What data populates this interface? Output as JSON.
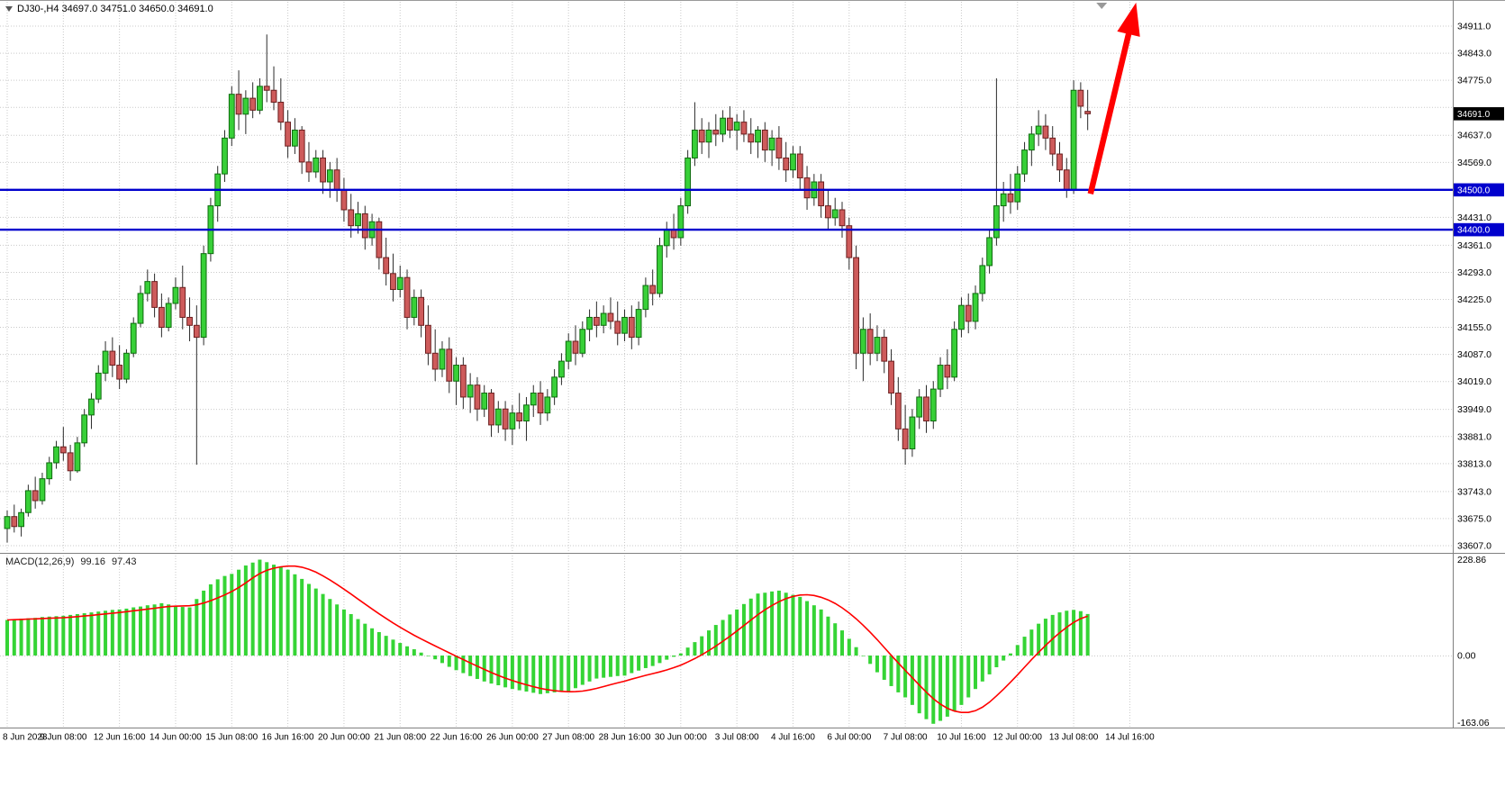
{
  "header": {
    "symbol_info": "DJ30-,H4 34697.0 34751.0 34650.0 34691.0"
  },
  "colors": {
    "background": "#FFFFFF",
    "grid": "#C9C9C9",
    "bull_candle": "#38D038",
    "bull_border": "#0E6B0E",
    "bear_candle": "#CE5B5B",
    "bear_border": "#6B1F1F",
    "wick": "#2B2B2B",
    "level_line": "#0000CD",
    "price_tag_bg": "#000000",
    "macd_histogram": "#35D435",
    "macd_signal": "#FF0000",
    "arrow": "#FF0000",
    "axis_text": "#000000",
    "separator": "#808080"
  },
  "chart_data": {
    "type": "candlestick",
    "symbol": "DJ30-",
    "timeframe": "H4",
    "ohlc_current": {
      "open": 34697.0,
      "high": 34751.0,
      "low": 34650.0,
      "close": 34691.0
    },
    "y_axis": {
      "min": 33607.0,
      "max": 34911.0,
      "labels": [
        "34911.0",
        "34843.0",
        "34775.0",
        "34637.0",
        "34569.0",
        "34431.0",
        "34361.0",
        "34293.0",
        "34225.0",
        "34155.0",
        "34087.0",
        "34019.0",
        "33949.0",
        "33881.0",
        "33813.0",
        "33743.0",
        "33675.0",
        "33607.0"
      ],
      "grid_values": [
        34911,
        34843,
        34775,
        34707,
        34637,
        34569,
        34501,
        34431,
        34361,
        34293,
        34225,
        34155,
        34087,
        34019,
        33949,
        33881,
        33813,
        33743,
        33675,
        33607
      ]
    },
    "x_axis": {
      "bars_per_label": 8,
      "labels": [
        "8 Jun 2023",
        "9 Jun 08:00",
        "12 Jun 16:00",
        "14 Jun 00:00",
        "15 Jun 08:00",
        "16 Jun 16:00",
        "20 Jun 00:00",
        "21 Jun 08:00",
        "22 Jun 16:00",
        "26 Jun 00:00",
        "27 Jun 08:00",
        "28 Jun 16:00",
        "30 Jun 00:00",
        "3 Jul 08:00",
        "4 Jul 16:00",
        "6 Jul 00:00",
        "7 Jul 08:00",
        "10 Jul 16:00",
        "12 Jul 00:00",
        "13 Jul 08:00",
        "14 Jul 16:00"
      ]
    },
    "hlines": [
      {
        "price": 34500.0,
        "label": "34500.0"
      },
      {
        "price": 34400.0,
        "label": "34400.0"
      }
    ],
    "price_tag": {
      "price": 34691.0,
      "label": "34691.0"
    },
    "annotations": {
      "arrow": {
        "from_bar": 154.4,
        "from_price": 34490,
        "to_bar": 160.9,
        "to_price": 34970
      },
      "shift_marker_bar": 156
    },
    "candles": [
      [
        33650,
        33695,
        33615,
        33680
      ],
      [
        33680,
        33710,
        33640,
        33655
      ],
      [
        33655,
        33700,
        33630,
        33690
      ],
      [
        33690,
        33760,
        33680,
        33745
      ],
      [
        33745,
        33780,
        33700,
        33720
      ],
      [
        33720,
        33790,
        33710,
        33775
      ],
      [
        33775,
        33830,
        33760,
        33815
      ],
      [
        33815,
        33870,
        33800,
        33855
      ],
      [
        33855,
        33905,
        33820,
        33840
      ],
      [
        33840,
        33860,
        33770,
        33795
      ],
      [
        33795,
        33880,
        33790,
        33865
      ],
      [
        33865,
        33950,
        33855,
        33935
      ],
      [
        33935,
        33990,
        33900,
        33975
      ],
      [
        33975,
        34060,
        33965,
        34040
      ],
      [
        34040,
        34120,
        34020,
        34095
      ],
      [
        34095,
        34130,
        34030,
        34060
      ],
      [
        34060,
        34110,
        34000,
        34025
      ],
      [
        34025,
        34100,
        34015,
        34090
      ],
      [
        34090,
        34180,
        34080,
        34165
      ],
      [
        34165,
        34260,
        34155,
        34240
      ],
      [
        34240,
        34300,
        34220,
        34270
      ],
      [
        34270,
        34290,
        34180,
        34205
      ],
      [
        34205,
        34240,
        34130,
        34155
      ],
      [
        34155,
        34230,
        34145,
        34215
      ],
      [
        34215,
        34280,
        34200,
        34255
      ],
      [
        34255,
        34310,
        34150,
        34180
      ],
      [
        34180,
        34230,
        34120,
        34160
      ],
      [
        34160,
        34210,
        33810,
        34130
      ],
      [
        34130,
        34360,
        34110,
        34340
      ],
      [
        34340,
        34480,
        34320,
        34460
      ],
      [
        34460,
        34560,
        34420,
        34540
      ],
      [
        34540,
        34650,
        34520,
        34630
      ],
      [
        34630,
        34760,
        34610,
        34740
      ],
      [
        34740,
        34800,
        34650,
        34690
      ],
      [
        34690,
        34750,
        34640,
        34730
      ],
      [
        34730,
        34770,
        34680,
        34700
      ],
      [
        34700,
        34780,
        34690,
        34760
      ],
      [
        34760,
        34890,
        34720,
        34750
      ],
      [
        34750,
        34810,
        34700,
        34720
      ],
      [
        34720,
        34780,
        34650,
        34670
      ],
      [
        34670,
        34700,
        34580,
        34610
      ],
      [
        34610,
        34680,
        34590,
        34650
      ],
      [
        34650,
        34660,
        34540,
        34570
      ],
      [
        34570,
        34620,
        34520,
        34545
      ],
      [
        34545,
        34600,
        34530,
        34580
      ],
      [
        34580,
        34600,
        34490,
        34520
      ],
      [
        34520,
        34570,
        34480,
        34550
      ],
      [
        34550,
        34580,
        34470,
        34500
      ],
      [
        34500,
        34530,
        34420,
        34450
      ],
      [
        34450,
        34490,
        34380,
        34410
      ],
      [
        34410,
        34470,
        34390,
        34440
      ],
      [
        34440,
        34460,
        34350,
        34380
      ],
      [
        34380,
        34440,
        34360,
        34420
      ],
      [
        34420,
        34430,
        34300,
        34330
      ],
      [
        34330,
        34380,
        34260,
        34290
      ],
      [
        34290,
        34340,
        34220,
        34250
      ],
      [
        34250,
        34310,
        34230,
        34280
      ],
      [
        34280,
        34300,
        34150,
        34180
      ],
      [
        34180,
        34250,
        34160,
        34230
      ],
      [
        34230,
        34250,
        34130,
        34160
      ],
      [
        34160,
        34210,
        34060,
        34090
      ],
      [
        34090,
        34150,
        34020,
        34050
      ],
      [
        34050,
        34120,
        34030,
        34100
      ],
      [
        34100,
        34130,
        33990,
        34020
      ],
      [
        34020,
        34080,
        33960,
        34060
      ],
      [
        34060,
        34080,
        33950,
        33980
      ],
      [
        33980,
        34040,
        33940,
        34010
      ],
      [
        34010,
        34030,
        33920,
        33950
      ],
      [
        33950,
        34010,
        33930,
        33990
      ],
      [
        33990,
        34000,
        33880,
        33910
      ],
      [
        33910,
        33970,
        33890,
        33950
      ],
      [
        33950,
        33970,
        33870,
        33900
      ],
      [
        33900,
        33960,
        33860,
        33940
      ],
      [
        33940,
        33990,
        33900,
        33920
      ],
      [
        33920,
        33980,
        33870,
        33960
      ],
      [
        33960,
        34010,
        33930,
        33990
      ],
      [
        33990,
        34020,
        33910,
        33940
      ],
      [
        33940,
        34000,
        33920,
        33980
      ],
      [
        33980,
        34050,
        33960,
        34030
      ],
      [
        34030,
        34090,
        34010,
        34070
      ],
      [
        34070,
        34140,
        34050,
        34120
      ],
      [
        34120,
        34160,
        34060,
        34090
      ],
      [
        34090,
        34170,
        34080,
        34150
      ],
      [
        34150,
        34200,
        34120,
        34180
      ],
      [
        34180,
        34220,
        34130,
        34160
      ],
      [
        34160,
        34210,
        34140,
        34190
      ],
      [
        34190,
        34230,
        34150,
        34170
      ],
      [
        34170,
        34220,
        34110,
        34140
      ],
      [
        34140,
        34200,
        34120,
        34180
      ],
      [
        34180,
        34210,
        34100,
        34130
      ],
      [
        34130,
        34220,
        34110,
        34200
      ],
      [
        34200,
        34280,
        34180,
        34260
      ],
      [
        34260,
        34300,
        34210,
        34240
      ],
      [
        34240,
        34380,
        34230,
        34360
      ],
      [
        34360,
        34420,
        34330,
        34400
      ],
      [
        34400,
        34440,
        34350,
        34380
      ],
      [
        34380,
        34480,
        34360,
        34460
      ],
      [
        34460,
        34600,
        34440,
        34580
      ],
      [
        34580,
        34720,
        34560,
        34650
      ],
      [
        34650,
        34680,
        34590,
        34620
      ],
      [
        34620,
        34670,
        34580,
        34650
      ],
      [
        34650,
        34690,
        34610,
        34640
      ],
      [
        34640,
        34700,
        34620,
        34680
      ],
      [
        34680,
        34710,
        34630,
        34650
      ],
      [
        34650,
        34690,
        34600,
        34670
      ],
      [
        34670,
        34700,
        34620,
        34640
      ],
      [
        34640,
        34680,
        34590,
        34620
      ],
      [
        34620,
        34660,
        34580,
        34650
      ],
      [
        34650,
        34670,
        34570,
        34600
      ],
      [
        34600,
        34650,
        34560,
        34630
      ],
      [
        34630,
        34660,
        34550,
        34580
      ],
      [
        34580,
        34620,
        34520,
        34550
      ],
      [
        34550,
        34610,
        34530,
        34590
      ],
      [
        34590,
        34610,
        34500,
        34530
      ],
      [
        34530,
        34560,
        34450,
        34480
      ],
      [
        34480,
        34540,
        34460,
        34520
      ],
      [
        34520,
        34540,
        34430,
        34460
      ],
      [
        34460,
        34500,
        34400,
        34430
      ],
      [
        34430,
        34480,
        34410,
        34450
      ],
      [
        34450,
        34470,
        34380,
        34410
      ],
      [
        34410,
        34430,
        34300,
        34330
      ],
      [
        34330,
        34360,
        34050,
        34090
      ],
      [
        34090,
        34180,
        34020,
        34150
      ],
      [
        34150,
        34190,
        34060,
        34090
      ],
      [
        34090,
        34160,
        34070,
        34130
      ],
      [
        34130,
        34150,
        34040,
        34070
      ],
      [
        34070,
        34100,
        33960,
        33990
      ],
      [
        33990,
        34030,
        33870,
        33900
      ],
      [
        33900,
        33960,
        33810,
        33850
      ],
      [
        33850,
        33950,
        33830,
        33930
      ],
      [
        33930,
        34000,
        33900,
        33980
      ],
      [
        33980,
        34010,
        33890,
        33920
      ],
      [
        33920,
        34020,
        33900,
        34000
      ],
      [
        34000,
        34080,
        33980,
        34060
      ],
      [
        34060,
        34100,
        34000,
        34030
      ],
      [
        34030,
        34170,
        34020,
        34150
      ],
      [
        34150,
        34230,
        34130,
        34210
      ],
      [
        34210,
        34240,
        34140,
        34170
      ],
      [
        34170,
        34260,
        34150,
        34240
      ],
      [
        34240,
        34330,
        34220,
        34310
      ],
      [
        34310,
        34400,
        34290,
        34380
      ],
      [
        34380,
        34780,
        34360,
        34460
      ],
      [
        34460,
        34520,
        34420,
        34490
      ],
      [
        34490,
        34540,
        34440,
        34470
      ],
      [
        34470,
        34560,
        34450,
        34540
      ],
      [
        34540,
        34620,
        34520,
        34600
      ],
      [
        34600,
        34660,
        34560,
        34640
      ],
      [
        34640,
        34700,
        34610,
        34660
      ],
      [
        34660,
        34690,
        34600,
        34630
      ],
      [
        34630,
        34660,
        34560,
        34590
      ],
      [
        34590,
        34620,
        34520,
        34550
      ],
      [
        34550,
        34580,
        34480,
        34500
      ],
      [
        34500,
        34775,
        34490,
        34750
      ],
      [
        34750,
        34770,
        34680,
        34710
      ],
      [
        34697,
        34751,
        34650,
        34691
      ]
    ],
    "macd": {
      "title": "MACD(12,26,9)",
      "value": "99.16",
      "signal": "97.43",
      "signal_period": 9,
      "axis_labels": [
        "228.86",
        "0.00",
        "-163.06"
      ],
      "range": [
        -163.06,
        228.86
      ],
      "histogram": [
        85,
        86,
        88,
        89,
        90,
        92,
        93,
        94,
        95,
        97,
        99,
        101,
        103,
        105,
        107,
        109,
        110,
        112,
        115,
        117,
        120,
        122,
        125,
        122,
        118,
        116,
        115,
        135,
        155,
        170,
        182,
        190,
        195,
        205,
        215,
        222,
        229,
        223,
        217,
        211,
        205,
        194,
        183,
        171,
        160,
        147,
        135,
        122,
        110,
        99,
        87,
        76,
        65,
        56,
        47,
        38,
        30,
        22,
        15,
        7,
        0,
        -9,
        -18,
        -27,
        -35,
        -42,
        -49,
        -56,
        -62,
        -67,
        -71,
        -76,
        -80,
        -83,
        -86,
        -89,
        -92,
        -90,
        -88,
        -86,
        -85,
        -78,
        -70,
        -62,
        -55,
        -53,
        -51,
        -49,
        -48,
        -42,
        -36,
        -30,
        -25,
        -18,
        -10,
        -3,
        5,
        19,
        32,
        46,
        60,
        73,
        85,
        98,
        110,
        123,
        136,
        148,
        150,
        153,
        155,
        150,
        145,
        140,
        130,
        120,
        110,
        93,
        77,
        60,
        40,
        20,
        0,
        -20,
        -40,
        -58,
        -73,
        -88,
        -100,
        -118,
        -138,
        -152,
        -163,
        -156,
        -146,
        -133,
        -118,
        -100,
        -80,
        -62,
        -45,
        -28,
        -12,
        5,
        25,
        45,
        62,
        76,
        88,
        97,
        103,
        107,
        109,
        106,
        99.16
      ]
    }
  }
}
